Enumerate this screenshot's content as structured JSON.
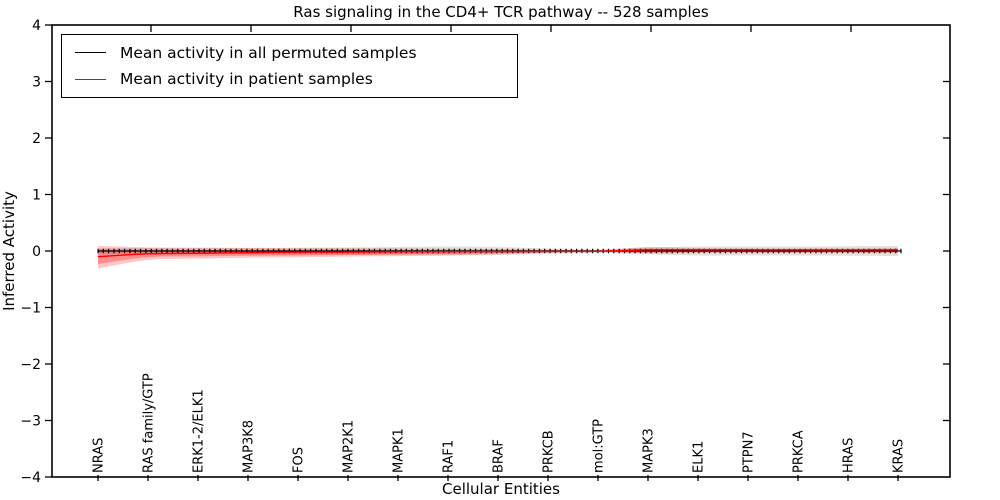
{
  "chart_data": {
    "type": "line",
    "title": "Ras signaling in the CD4+ TCR pathway -- 528 samples",
    "xlabel": "Cellular Entities",
    "ylabel": "Inferred Activity",
    "ylim": [
      -4,
      4
    ],
    "grid": false,
    "legend_position": "upper left",
    "yticks": [
      {
        "label": "4",
        "value": 4
      },
      {
        "label": "3",
        "value": 3
      },
      {
        "label": "2",
        "value": 2
      },
      {
        "label": "1",
        "value": 1
      },
      {
        "label": "0",
        "value": 0
      },
      {
        "label": "−1",
        "value": -1
      },
      {
        "label": "−2",
        "value": -2
      },
      {
        "label": "−3",
        "value": -3
      },
      {
        "label": "−4",
        "value": -4
      }
    ],
    "categories": [
      "NRAS",
      "RAS family/GTP",
      "ERK1-2/ELK1",
      "MAP3K8",
      "FOS",
      "MAP2K1",
      "MAPK1",
      "RAF1",
      "BRAF",
      "PRKCB",
      "mol:GTP",
      "MAPK3",
      "ELK1",
      "PTPN7",
      "PRKCA",
      "HRAS",
      "KRAS"
    ],
    "series": [
      {
        "name": "Mean activity in all permuted samples",
        "color": "#000000",
        "style": "solid-with-tick-markers",
        "values": [
          0,
          0,
          0,
          0,
          0,
          0,
          0,
          0,
          0,
          0,
          0,
          0,
          0,
          0,
          0,
          0,
          0
        ]
      },
      {
        "name": "Mean activity in patient samples",
        "color": "#ff0000",
        "style": "solid",
        "values": [
          -0.1,
          -0.05,
          -0.04,
          -0.03,
          -0.02,
          -0.02,
          -0.015,
          -0.012,
          -0.01,
          -0.008,
          -0.005,
          0.02,
          0.02,
          0.02,
          0.018,
          0.018,
          0.02
        ]
      }
    ],
    "bands": [
      {
        "name": "permuted-samples-std-band",
        "color": "rgba(130,130,130,0.25)",
        "upper": [
          0.05,
          0.05,
          0.05,
          0.055,
          0.06,
          0.065,
          0.07,
          0.08,
          0.07,
          0.045,
          0.03,
          0.06,
          0.08,
          0.08,
          0.08,
          0.085,
          0.09
        ],
        "lower": [
          -0.05,
          -0.05,
          -0.05,
          -0.055,
          -0.06,
          -0.065,
          -0.07,
          -0.08,
          -0.07,
          -0.045,
          -0.03,
          -0.06,
          -0.08,
          -0.08,
          -0.08,
          -0.085,
          -0.09
        ]
      },
      {
        "name": "patient-samples-std-band-outer",
        "color": "rgba(255,0,0,0.22)",
        "upper": [
          0.09,
          0.065,
          0.06,
          0.055,
          0.05,
          0.05,
          0.045,
          0.04,
          0.035,
          0.025,
          0.015,
          0.07,
          0.05,
          0.045,
          0.045,
          0.045,
          0.05
        ],
        "lower": [
          -0.31,
          -0.16,
          -0.135,
          -0.12,
          -0.11,
          -0.1,
          -0.09,
          -0.075,
          -0.055,
          -0.03,
          -0.015,
          -0.04,
          -0.03,
          -0.03,
          -0.03,
          -0.03,
          -0.035
        ]
      },
      {
        "name": "patient-samples-std-band-inner",
        "color": "rgba(255,0,0,0.28)",
        "upper": [
          0.03,
          0.025,
          0.02,
          0.02,
          0.02,
          0.02,
          0.018,
          0.015,
          0.012,
          0.01,
          0.008,
          0.04,
          0.03,
          0.028,
          0.028,
          0.028,
          0.03
        ],
        "lower": [
          -0.23,
          -0.11,
          -0.095,
          -0.085,
          -0.08,
          -0.07,
          -0.06,
          -0.05,
          -0.04,
          -0.022,
          -0.01,
          -0.025,
          -0.02,
          -0.02,
          -0.02,
          -0.02,
          -0.022
        ]
      }
    ],
    "marker_count": 152
  }
}
